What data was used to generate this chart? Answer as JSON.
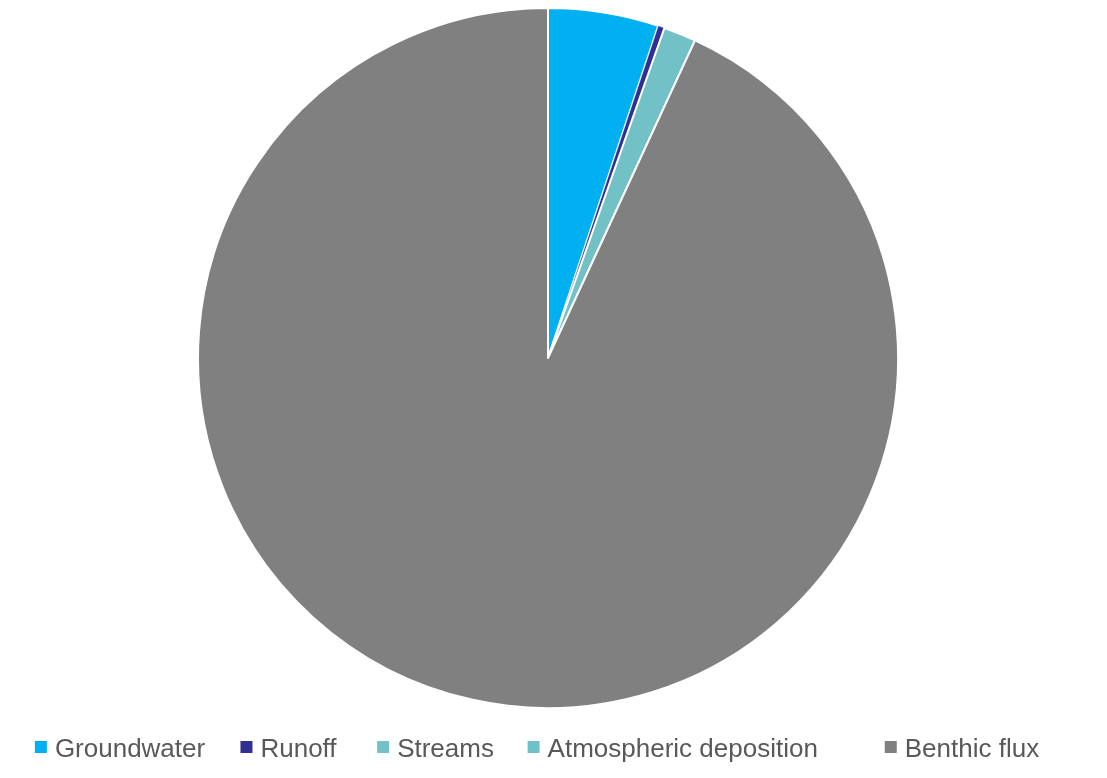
{
  "chart_data": {
    "type": "pie",
    "categories": [
      "Groundwater",
      "Runoff",
      "Streams",
      "Atmospheric deposition",
      "Benthic flux"
    ],
    "values": [
      5.1,
      0.3,
      1.5,
      null,
      93.1
    ],
    "colors": [
      "#00b0f0",
      "#2e3192",
      "#72c1c6",
      "#70c0c8",
      "#808080"
    ],
    "legend": "bottom"
  }
}
